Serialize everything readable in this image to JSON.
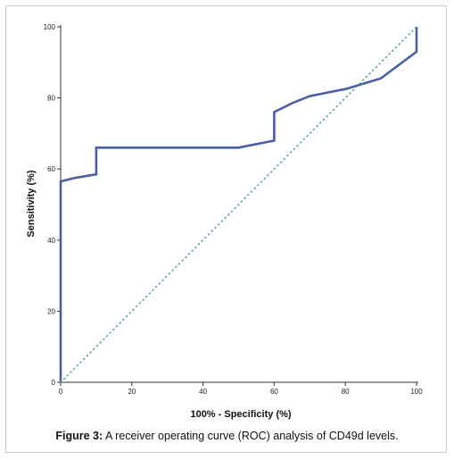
{
  "caption": {
    "label": "Figure 3:",
    "text": "A receiver operating curve (ROC) analysis of CD49d levels."
  },
  "chart_data": {
    "type": "line",
    "title": "",
    "xlabel": "100% - Specificity (%)",
    "ylabel": "Sensitivity (%)",
    "xlim": [
      0,
      100
    ],
    "ylim": [
      0,
      100
    ],
    "xticks": [
      "0",
      "20",
      "40",
      "60",
      "80",
      "100"
    ],
    "yticks": [
      "0",
      "20",
      "40",
      "60",
      "80",
      "100"
    ],
    "grid": false,
    "series": [
      {
        "style": "solid",
        "color": "#4a5fa8",
        "points": [
          [
            0,
            0
          ],
          [
            0,
            56.5
          ],
          [
            4,
            57.5
          ],
          [
            10,
            58.5
          ],
          [
            10,
            66
          ],
          [
            50,
            66
          ],
          [
            55,
            67
          ],
          [
            60,
            68
          ],
          [
            60,
            76
          ],
          [
            65,
            78.5
          ],
          [
            70,
            80.5
          ],
          [
            80,
            82.5
          ],
          [
            90,
            85.5
          ],
          [
            100,
            93
          ],
          [
            100,
            100
          ]
        ]
      },
      {
        "style": "dotted",
        "color": "#3a9a8a",
        "points": [
          [
            0,
            0
          ],
          [
            100,
            100
          ]
        ]
      }
    ]
  }
}
